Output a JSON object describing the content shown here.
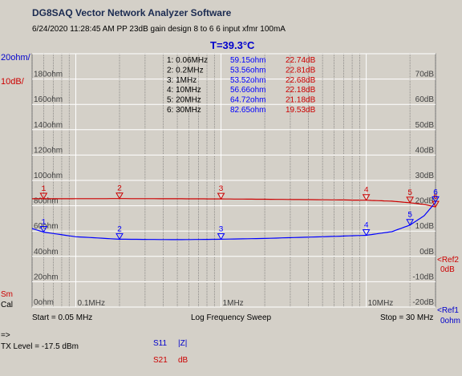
{
  "header": {
    "app_title": "DG8SAQ Vector Network Analyzer Software",
    "subtitle": "6/24/2020   11:28:45 AM   PP 23dB gain design 8 to 6 6 input xfmr 100mA",
    "temperature": "T=39.3°C"
  },
  "axes": {
    "left_unit": "20ohm/",
    "left_unit2": "10dB/",
    "ref2_label": "<Ref2",
    "ref2_value": "0dB",
    "ref1_label": "<Ref1",
    "ref1_value": "0ohm",
    "left_markers": [
      "Sm",
      "Cal"
    ]
  },
  "footer": {
    "start": "Start = 0.05 MHz",
    "sweep": "Log Frequency Sweep",
    "stop": "Stop = 30 MHz",
    "prompt": "=>",
    "tx_level": "TX Level = -17.5 dBm",
    "trace1_name": "S11",
    "trace1_fmt": "|Z|",
    "trace2_name": "S21",
    "trace2_fmt": "dB"
  },
  "colors": {
    "s11": "#0000ff",
    "s21": "#cc0000",
    "grid": "#ffffff",
    "grid_minor": "#606060",
    "plot_bg": "#d4d0c8"
  },
  "chart_data": {
    "type": "line",
    "x_scale": "log",
    "xlim": [
      0.05,
      30
    ],
    "x_tick_labels": [
      "0.1MHz",
      "1MHz",
      "10MHz"
    ],
    "x_tick_values": [
      0.1,
      1,
      10
    ],
    "left_axis": {
      "unit": "ohm",
      "ylim": [
        0,
        200
      ],
      "tick_labels": [
        "0ohm",
        "20ohm",
        "40ohm",
        "60ohm",
        "80ohm",
        "100ohm",
        "120ohm",
        "140ohm",
        "160ohm",
        "180ohm"
      ],
      "tick_values": [
        0,
        20,
        40,
        60,
        80,
        100,
        120,
        140,
        160,
        180
      ]
    },
    "right_axis": {
      "unit": "dB",
      "ylim": [
        -20,
        80
      ],
      "tick_labels": [
        "-20dB",
        "-10dB",
        "0dB",
        "10dB",
        "20dB",
        "30dB",
        "40dB",
        "50dB",
        "60dB",
        "70dB"
      ],
      "tick_values": [
        -20,
        -10,
        0,
        10,
        20,
        30,
        40,
        50,
        60,
        70
      ]
    },
    "series": [
      {
        "name": "S11 |Z|",
        "axis": "left",
        "x": [
          0.05,
          0.06,
          0.1,
          0.2,
          0.5,
          1,
          2,
          5,
          10,
          15,
          20,
          25,
          30
        ],
        "y": [
          62,
          59.15,
          55.5,
          53.56,
          53.2,
          53.52,
          54.2,
          55.5,
          56.66,
          59.5,
          64.72,
          72,
          82.65
        ]
      },
      {
        "name": "S21 dB",
        "axis": "right",
        "x": [
          0.05,
          0.06,
          0.1,
          0.2,
          0.5,
          1,
          2,
          5,
          10,
          15,
          20,
          25,
          30
        ],
        "y": [
          22.74,
          22.74,
          22.77,
          22.81,
          22.75,
          22.68,
          22.55,
          22.35,
          22.18,
          21.8,
          21.18,
          20.5,
          19.53
        ]
      }
    ],
    "markers": [
      {
        "id": "1",
        "freq_label": "0.06MHz",
        "x": 0.06,
        "z": 59.15,
        "z_label": "59.15ohm",
        "db": 22.74,
        "db_label": "22.74dB"
      },
      {
        "id": "2",
        "freq_label": "0.2MHz",
        "x": 0.2,
        "z": 53.56,
        "z_label": "53.56ohm",
        "db": 22.81,
        "db_label": "22.81dB"
      },
      {
        "id": "3",
        "freq_label": "1MHz",
        "x": 1,
        "z": 53.52,
        "z_label": "53.52ohm",
        "db": 22.68,
        "db_label": "22.68dB"
      },
      {
        "id": "4",
        "freq_label": "10MHz",
        "x": 10,
        "z": 56.66,
        "z_label": "56.66ohm",
        "db": 22.18,
        "db_label": "22.18dB"
      },
      {
        "id": "5",
        "freq_label": "20MHz",
        "x": 20,
        "z": 64.72,
        "z_label": "64.72ohm",
        "db": 21.18,
        "db_label": "21.18dB"
      },
      {
        "id": "6",
        "freq_label": "30MHz",
        "x": 30,
        "z": 82.65,
        "z_label": "82.65ohm",
        "db": 19.53,
        "db_label": "19.53dB"
      }
    ]
  }
}
